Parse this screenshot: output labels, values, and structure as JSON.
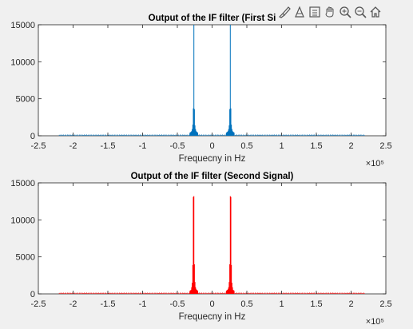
{
  "toolbar": {
    "icons": [
      "brush-icon",
      "datatip-icon",
      "legend-icon",
      "pan-icon",
      "zoom-in-icon",
      "zoom-out-icon",
      "home-icon"
    ]
  },
  "chart_data": [
    {
      "type": "line",
      "title": "Output of the IF filter (First Si",
      "xlabel": "Frequecny in Hz",
      "ylabel": "",
      "x_exponent": "×10⁵",
      "xlim": [
        -2.5,
        2.5
      ],
      "ylim": [
        0,
        15000
      ],
      "xticks": [
        -2.5,
        -2,
        -1.5,
        -1,
        -0.5,
        0,
        0.5,
        1,
        1.5,
        2,
        2.5
      ],
      "yticks": [
        0,
        5000,
        10000,
        15000
      ],
      "xtick_labels": [
        "-2.5",
        "-2",
        "-1.5",
        "-1",
        "-0.5",
        "0",
        "0.5",
        "1",
        "1.5",
        "2",
        "2.5"
      ],
      "ytick_labels": [
        "0",
        "5000",
        "10000",
        "15000"
      ],
      "color": "#0072bd",
      "grid": false,
      "series": [
        {
          "x": [
            -0.262,
            -0.27,
            -0.254,
            -0.278,
            -0.246,
            -0.286,
            -0.238,
            -0.294,
            -0.23,
            -0.302,
            -0.222,
            0.262,
            0.27,
            0.254,
            0.278,
            0.246,
            0.286,
            0.238,
            0.294,
            0.23,
            0.302,
            0.222
          ],
          "y": [
            15000,
            3700,
            3600,
            1500,
            1400,
            900,
            900,
            500,
            500,
            300,
            300,
            15000,
            3700,
            3600,
            1500,
            1400,
            900,
            900,
            500,
            500,
            300,
            300
          ]
        }
      ]
    },
    {
      "type": "line",
      "title": "Output of the IF filter (Second Signal)",
      "xlabel": "Frequecny in Hz",
      "ylabel": "",
      "x_exponent": "×10⁵",
      "xlim": [
        -2.5,
        2.5
      ],
      "ylim": [
        0,
        15000
      ],
      "xticks": [
        -2.5,
        -2,
        -1.5,
        -1,
        -0.5,
        0,
        0.5,
        1,
        1.5,
        2,
        2.5
      ],
      "yticks": [
        0,
        5000,
        10000,
        15000
      ],
      "xtick_labels": [
        "-2.5",
        "-2",
        "-1.5",
        "-1",
        "-0.5",
        "0",
        "0.5",
        "1",
        "1.5",
        "2",
        "2.5"
      ],
      "ytick_labels": [
        "0",
        "5000",
        "10000",
        "15000"
      ],
      "color": "#ff0000",
      "grid": false,
      "series": [
        {
          "x": [
            -0.262,
            -0.27,
            -0.254,
            -0.278,
            -0.246,
            -0.286,
            -0.238,
            -0.294,
            -0.23,
            -0.302,
            -0.222,
            0.262,
            0.27,
            0.254,
            0.278,
            0.246,
            0.286,
            0.238,
            0.294,
            0.23,
            0.302,
            0.222
          ],
          "y": [
            13200,
            13100,
            4000,
            3900,
            1600,
            1500,
            900,
            900,
            500,
            500,
            300,
            13200,
            13100,
            4000,
            3900,
            1600,
            1500,
            900,
            900,
            500,
            500,
            300
          ]
        }
      ]
    }
  ]
}
